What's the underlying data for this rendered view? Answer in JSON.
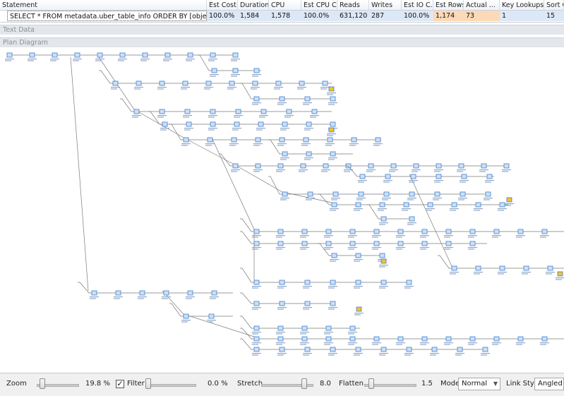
{
  "grid": {
    "headers": [
      "Statement",
      "Est Cost",
      "Duration",
      "CPU",
      "Est CPU C...",
      "Reads",
      "Writes",
      "Est IO C...",
      "Est Rows",
      "Actual ...",
      "Key Lookups",
      "Sort O"
    ],
    "row": [
      "SELECT * FROM metadata.uber_table_info ORDER BY [object]",
      "100.0%",
      "1,584",
      "1,578",
      "100.0%",
      "631,120",
      "287",
      "100.0%",
      "1,174",
      "73",
      "1",
      "15"
    ]
  },
  "sections": {
    "text_data": "Text Data",
    "plan_diagram": "Plan Diagram"
  },
  "toolbar": {
    "zoom_label": "Zoom",
    "zoom_value": "19.8 %",
    "filter_label": "Filter",
    "filter_checked": "✓",
    "filter_value": "0.0 %",
    "stretch_label": "Stretch",
    "stretch_value": "8.0",
    "flatten_label": "Flatten",
    "flatten_value": "1.5",
    "mode_label": "Mode",
    "mode_value": "Normal",
    "link_style_label": "Link Style",
    "link_style_value": "Angled"
  },
  "colors": {
    "selected_row": "#dde8f6",
    "highlight": "#fcd9b7",
    "node_blue": "#3d7fd0",
    "edge": "#7a7a7a",
    "warning": "#f2c230"
  }
}
